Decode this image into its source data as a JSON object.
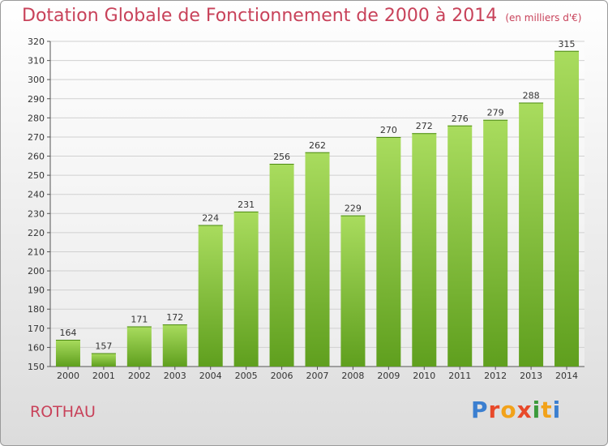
{
  "page": {
    "title": "Dotation Globale de Fonctionnement de 2000 à 2014",
    "subtitle": "(en milliers d'€)",
    "commune": "ROTHAU",
    "logo": {
      "text": "Proxiti",
      "letter_colors": [
        "#3b7fd0",
        "#e8492a",
        "#f2a21a",
        "#e8492a",
        "#3b9a3b",
        "#f2a21a",
        "#3b7fd0"
      ]
    }
  },
  "chart_data": {
    "type": "bar",
    "title": "Dotation Globale de Fonctionnement de 2000 à 2014",
    "subtitle": "(en milliers d'€)",
    "xlabel": "",
    "ylabel": "",
    "categories": [
      "2000",
      "2001",
      "2002",
      "2003",
      "2004",
      "2005",
      "2006",
      "2007",
      "2008",
      "2009",
      "2010",
      "2011",
      "2012",
      "2013",
      "2014"
    ],
    "values": [
      164,
      157,
      171,
      172,
      224,
      231,
      256,
      262,
      229,
      270,
      272,
      276,
      279,
      288,
      315
    ],
    "ylim": [
      150,
      320
    ],
    "ytick_step": 10,
    "grid": true,
    "data_labels": true,
    "bar_color": "#7cc13a",
    "bar_color_light": "#a9dc5e",
    "bar_color_dark": "#5f9f1e"
  }
}
